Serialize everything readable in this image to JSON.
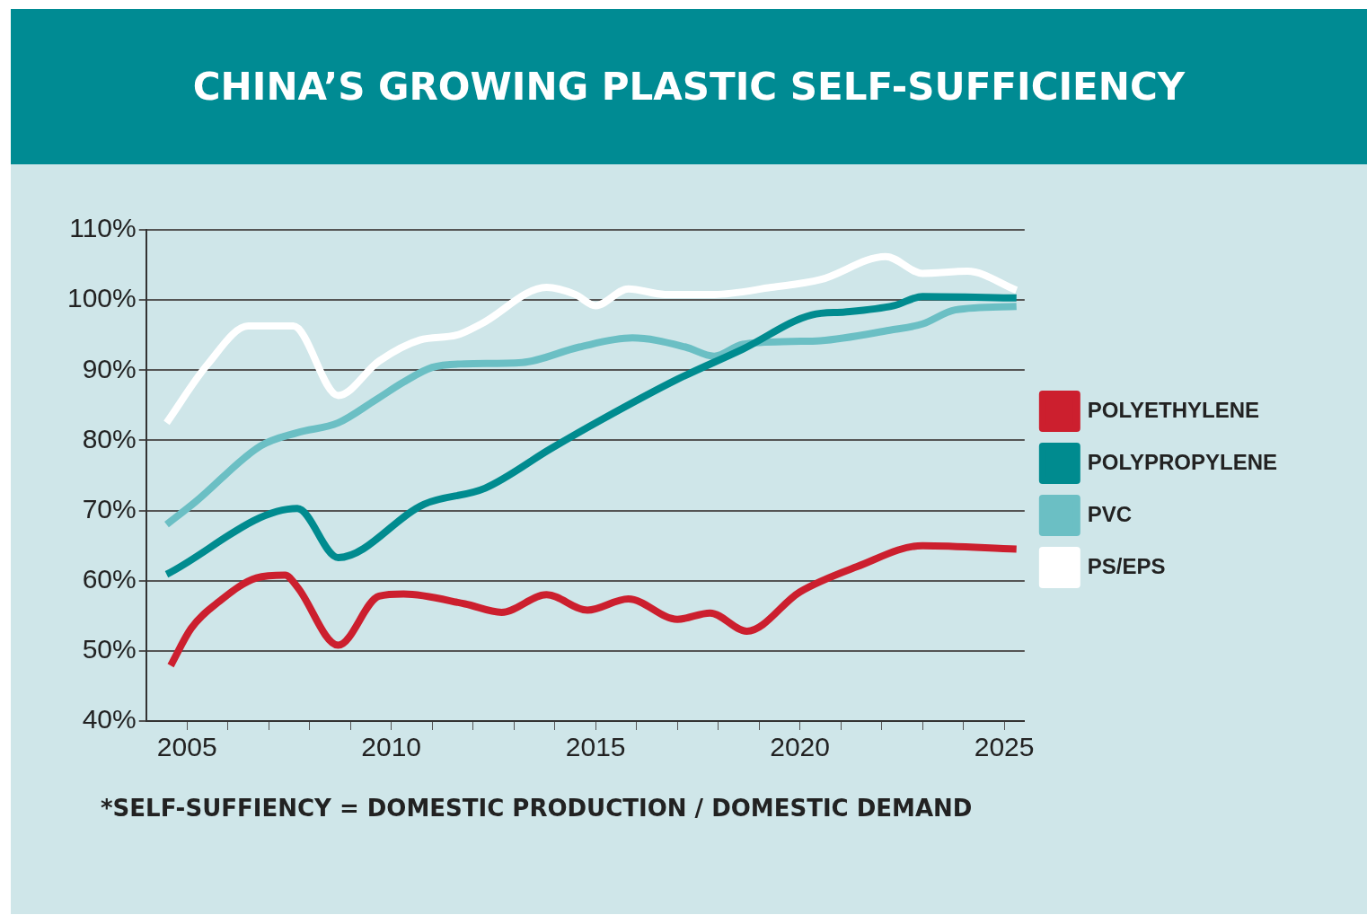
{
  "chart_data": {
    "type": "line",
    "title": "CHINA’S GROWING PLASTIC SELF-SUFFICIENCY",
    "xlim": [
      2004,
      2025.5
    ],
    "xticks": [
      2005,
      {
        "value": 2006,
        "label": null
      },
      {
        "value": 2007,
        "label": null
      },
      {
        "value": 2008,
        "label": null
      },
      {
        "value": 2009,
        "label": null
      },
      2010,
      {
        "value": 2011,
        "label": null
      },
      {
        "value": 2012,
        "label": null
      },
      {
        "value": 2013,
        "label": null
      },
      {
        "value": 2014,
        "label": null
      },
      2015,
      {
        "value": 2016,
        "label": null
      },
      {
        "value": 2017,
        "label": null
      },
      {
        "value": 2018,
        "label": null
      },
      {
        "value": 2019,
        "label": null
      },
      2020,
      {
        "value": 2021,
        "label": null
      },
      {
        "value": 2022,
        "label": null
      },
      {
        "value": 2023,
        "label": null
      },
      {
        "value": 2024,
        "label": null
      },
      2025
    ],
    "ylim": [
      40,
      110
    ],
    "yticks": [
      {
        "value": 40,
        "label": "40%"
      },
      {
        "value": 50,
        "label": "50%"
      },
      {
        "value": 60,
        "label": "60%"
      },
      {
        "value": 70,
        "label": "70%"
      },
      {
        "value": 80,
        "label": "80%"
      },
      {
        "value": 90,
        "label": "90%"
      },
      {
        "value": 100,
        "label": "100%"
      },
      {
        "value": 110,
        "label": "110%"
      }
    ],
    "grid": "y",
    "legend": "right",
    "marker": "none",
    "line_style": "solid",
    "annotations": [
      "*SELF-SUFFIENCY = DOMESTIC PRODUCTION / DOMESTIC DEMAND"
    ],
    "series": [
      {
        "name": "POLYETHYLENE",
        "color": "#cc1f2e",
        "x": [
          2004.6,
          2005.1,
          2005.8,
          2006.7,
          2007.4,
          2007.7,
          2008.7,
          2009.7,
          2010.3,
          2011.8,
          2012.7,
          2013.8,
          2014.8,
          2015.8,
          2017,
          2017.8,
          2018.7,
          2020,
          2021.4,
          2023,
          2025.3
        ],
        "values": [
          47.9,
          53.2,
          57.1,
          60.4,
          60.8,
          59.1,
          50.8,
          57.8,
          58.1,
          56.7,
          55.5,
          58,
          55.8,
          57.4,
          54.5,
          55.4,
          52.8,
          58.4,
          62,
          65,
          64.5
        ]
      },
      {
        "name": "POLYPROPYLENE",
        "color": "#008b8f",
        "x": [
          2004.5,
          2007.7,
          2008.7,
          2010.8,
          2012.3,
          2013.9,
          2015.1,
          2017,
          2018.6,
          2020.3,
          2021.1,
          2022.3,
          2023,
          2025.3
        ],
        "values": [
          60.9,
          70.3,
          63.3,
          70.9,
          73.2,
          78.8,
          82.8,
          88.7,
          93,
          97.9,
          98.3,
          99.2,
          100.5,
          100.3
        ]
      },
      {
        "name": "PVC",
        "color": "#6bbfc4",
        "x": [
          2004.5,
          2005.2,
          2006.8,
          2007.7,
          2008.7,
          2009.6,
          2010.3,
          2011,
          2011.8,
          2013.2,
          2014.6,
          2015.9,
          2017.2,
          2017.9,
          2018.6,
          2019.8,
          2020.5,
          2022.2,
          2023,
          2023.8,
          2025.3
        ],
        "values": [
          68,
          71.2,
          79.2,
          81.1,
          82.5,
          85.7,
          88.3,
          90.4,
          90.9,
          91.1,
          93.3,
          94.6,
          93.3,
          92,
          93.7,
          94.1,
          94.2,
          95.7,
          96.6,
          98.6,
          99.1
        ]
      },
      {
        "name": "PS/EPS",
        "color": "#ffffff",
        "x": [
          2004.5,
          2005.5,
          2006.5,
          2007.6,
          2008.7,
          2009.7,
          2010.7,
          2011.6,
          2012.2,
          2013.8,
          2014.5,
          2015,
          2015.8,
          2016.7,
          2017.9,
          2019.3,
          2020.5,
          2022.1,
          2023,
          2024.1,
          2025.3
        ],
        "values": [
          82.5,
          90.8,
          96.3,
          96.3,
          86.4,
          91.3,
          94.3,
          95,
          96.6,
          101.8,
          100.8,
          99.2,
          101.6,
          100.8,
          100.8,
          101.8,
          102.9,
          106.2,
          103.8,
          104.1,
          101.4
        ]
      }
    ]
  }
}
